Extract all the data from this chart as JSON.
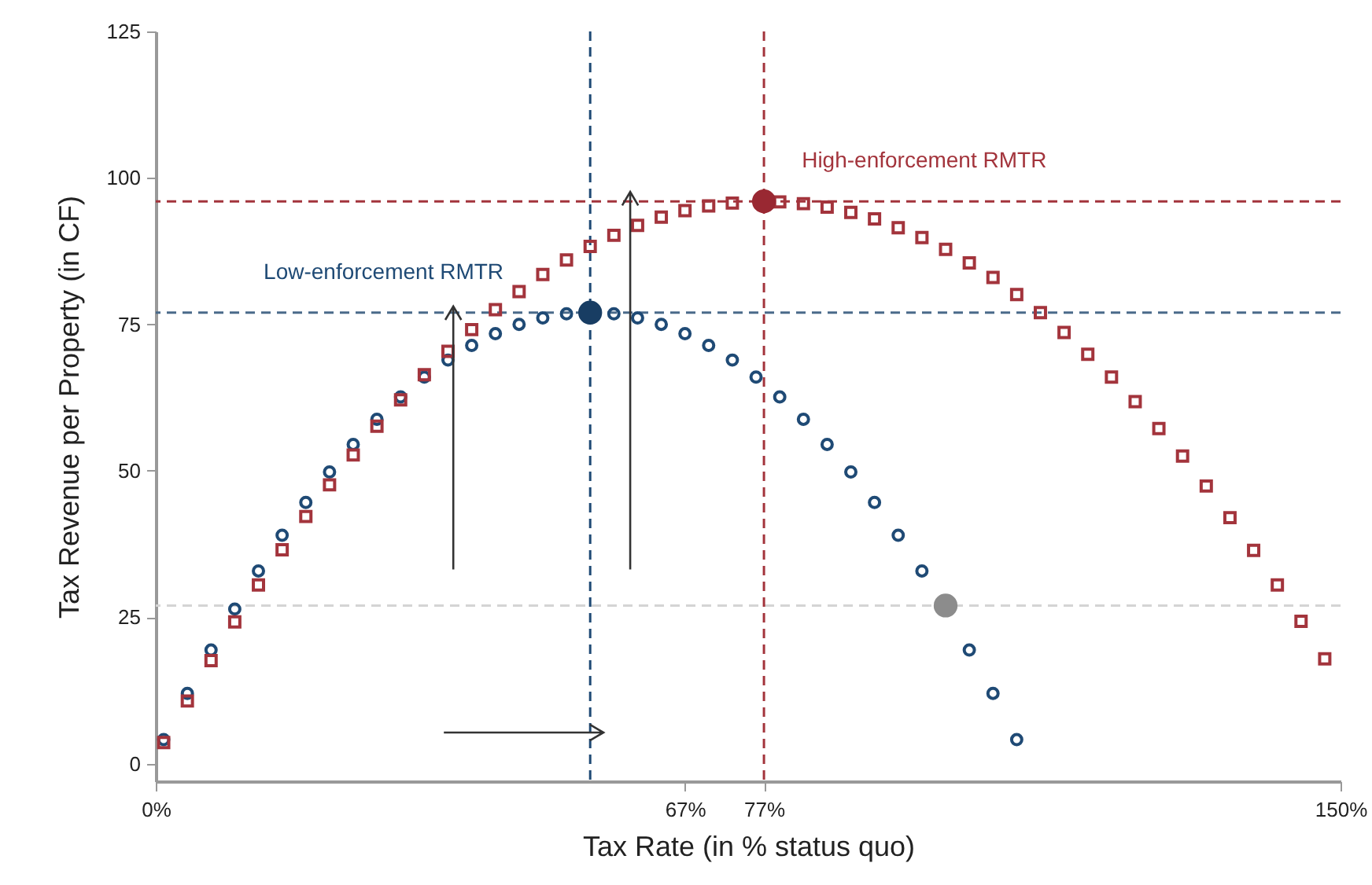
{
  "chart_data": {
    "type": "scatter",
    "xlabel": "Tax Rate (in % status quo)",
    "ylabel": "Tax Revenue per Property (in CF)",
    "xlim": [
      0,
      150
    ],
    "ylim": [
      -3,
      125
    ],
    "xticks": [
      {
        "value": 0,
        "label": "0%"
      },
      {
        "value": 67,
        "label": "67%"
      },
      {
        "value": 77,
        "label": "77%"
      },
      {
        "value": 150,
        "label": "150%"
      }
    ],
    "yticks": [
      0,
      25,
      50,
      75,
      100,
      125
    ],
    "grid": false,
    "annotations": [
      "Low-enforcement RMTR",
      "High-enforcement RMTR"
    ],
    "ref_lines": [
      {
        "axis": "y",
        "value": 96,
        "label": null,
        "color": "#a3343c",
        "line_style": "dashed"
      },
      {
        "axis": "y",
        "value": 77,
        "label": null,
        "color": "#4a6a8a",
        "line_style": "dashed"
      },
      {
        "axis": "y",
        "value": 27,
        "label": null,
        "color": "#d4d4d4",
        "line_style": "dashed"
      },
      {
        "axis": "x",
        "value": 55,
        "label": null,
        "color": "#1f4a75",
        "line_style": "dashed"
      },
      {
        "axis": "x",
        "value": 77,
        "label": null,
        "color": "#a3343c",
        "line_style": "dashed"
      }
    ],
    "series": [
      {
        "marker": "circle",
        "color": "#1f4a75",
        "x": [
          1,
          4,
          7,
          10,
          13,
          16,
          19,
          22,
          25,
          28,
          31,
          34,
          37,
          40,
          43,
          46,
          49,
          52,
          55,
          58,
          61,
          64,
          67,
          70,
          73,
          76,
          79,
          82,
          85,
          88,
          91,
          94,
          97,
          100,
          103,
          106,
          109
        ],
        "values": [
          4.1,
          12.0,
          19.4,
          26.4,
          32.9,
          39.0,
          44.6,
          49.8,
          54.5,
          58.8,
          62.6,
          66.0,
          68.9,
          71.4,
          73.4,
          75.0,
          76.1,
          76.8,
          null,
          76.8,
          76.1,
          75.0,
          73.4,
          71.4,
          68.9,
          66.0,
          62.6,
          58.8,
          54.5,
          49.8,
          44.6,
          39.0,
          32.9,
          null,
          19.4,
          12.0,
          4.1
        ]
      },
      {
        "marker": "square",
        "color": "#a3343c",
        "x": [
          1,
          4,
          7,
          10,
          13,
          16,
          19,
          22,
          25,
          28,
          31,
          34,
          37,
          40,
          43,
          46,
          49,
          52,
          55,
          58,
          61,
          64,
          67,
          70,
          73,
          76,
          79,
          82,
          85,
          88,
          91,
          94,
          97,
          100,
          103,
          106,
          109,
          112,
          115,
          118,
          121,
          124,
          127,
          130,
          133,
          136,
          139,
          142,
          145,
          148
        ],
        "values": [
          3.6,
          10.7,
          17.6,
          24.2,
          30.5,
          36.5,
          42.2,
          47.6,
          52.7,
          57.6,
          62.1,
          66.4,
          70.4,
          74.1,
          77.5,
          80.6,
          83.5,
          86,
          88.3,
          90.2,
          91.9,
          93.3,
          94.4,
          95.2,
          95.7,
          null,
          95.9,
          95.6,
          95,
          94.1,
          93,
          91.5,
          89.8,
          87.8,
          85.5,
          83,
          80.1,
          77,
          73.6,
          69.9,
          66,
          61.8,
          57.2,
          52.5,
          47.4,
          42,
          36.4,
          30.5,
          24.3,
          17.9
        ]
      },
      {
        "marker": "circle",
        "color": "#183d63",
        "x": [
          55
        ],
        "values": [
          77
        ]
      },
      {
        "marker": "circle",
        "color": "#992832",
        "x": [
          77
        ],
        "values": [
          96
        ]
      },
      {
        "marker": "circle",
        "color": "#8c8c8c",
        "x": [
          100
        ],
        "values": [
          27
        ]
      }
    ]
  }
}
